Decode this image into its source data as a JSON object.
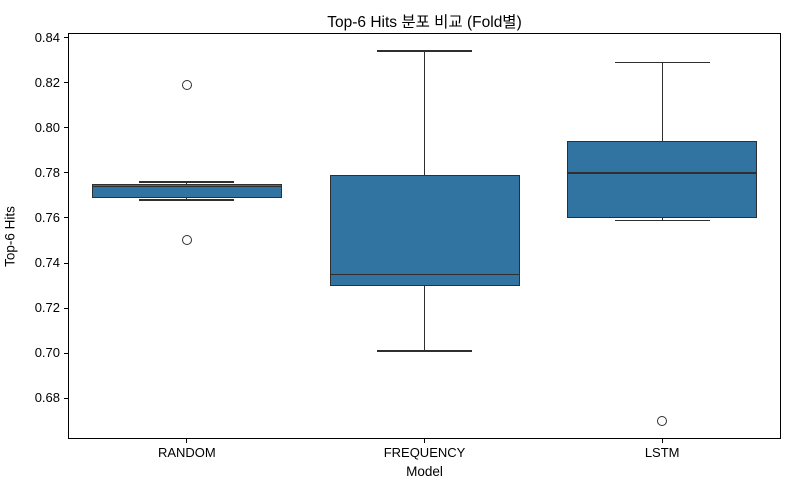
{
  "chart_data": {
    "type": "boxplot",
    "title": "Top-6 Hits 분포 비교 (Fold별)",
    "xlabel": "Model",
    "ylabel": "Top-6 Hits",
    "categories": [
      "RANDOM",
      "FREQUENCY",
      "LSTM"
    ],
    "ylim": [
      0.662,
      0.842
    ],
    "yticks": [
      0.84,
      0.82,
      0.8,
      0.78,
      0.76,
      0.74,
      0.72,
      0.7,
      0.68
    ],
    "grid": false,
    "legend": false,
    "series": [
      {
        "name": "RANDOM",
        "whisker_low": 0.768,
        "q1": 0.769,
        "median": 0.774,
        "q3": 0.775,
        "whisker_high": 0.776,
        "outliers": [
          0.819,
          0.75
        ]
      },
      {
        "name": "FREQUENCY",
        "whisker_low": 0.701,
        "q1": 0.73,
        "median": 0.735,
        "q3": 0.779,
        "whisker_high": 0.834,
        "outliers": []
      },
      {
        "name": "LSTM",
        "whisker_low": 0.759,
        "q1": 0.76,
        "median": 0.78,
        "q3": 0.794,
        "whisker_high": 0.829,
        "outliers": [
          0.67
        ]
      }
    ],
    "colors": {
      "box_fill": "#3274a1",
      "box_edge": "#2f2f2f",
      "spine": "#000000",
      "text": "#000000",
      "background": "#ffffff"
    }
  }
}
